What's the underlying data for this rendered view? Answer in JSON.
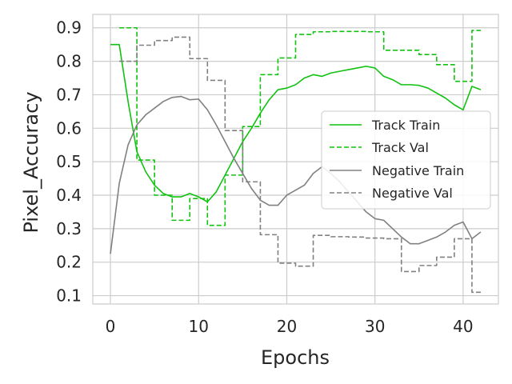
{
  "chart_data": {
    "type": "line",
    "xlabel": "Epochs",
    "ylabel": "Pixel_Accuracy",
    "xlim": [
      -2,
      44
    ],
    "ylim": [
      0.075,
      0.94
    ],
    "x_ticks": [
      0,
      10,
      20,
      30,
      40
    ],
    "y_ticks": [
      0.1,
      0.2,
      0.3,
      0.4,
      0.5,
      0.6,
      0.7,
      0.8,
      0.9
    ],
    "grid": true,
    "legend_position": "center-right",
    "series": [
      {
        "name": "Track Train",
        "color": "#11c211",
        "style": "solid",
        "x": [
          0,
          1,
          2,
          3,
          4,
          5,
          6,
          7,
          8,
          9,
          10,
          11,
          12,
          13,
          14,
          15,
          16,
          17,
          18,
          19,
          20,
          21,
          22,
          23,
          24,
          25,
          26,
          27,
          28,
          29,
          30,
          31,
          32,
          33,
          34,
          35,
          36,
          37,
          38,
          39,
          40,
          41,
          42
        ],
        "y": [
          0.85,
          0.85,
          0.68,
          0.53,
          0.47,
          0.43,
          0.405,
          0.395,
          0.395,
          0.405,
          0.395,
          0.38,
          0.41,
          0.46,
          0.51,
          0.56,
          0.6,
          0.645,
          0.685,
          0.715,
          0.72,
          0.73,
          0.75,
          0.76,
          0.755,
          0.765,
          0.77,
          0.775,
          0.78,
          0.785,
          0.78,
          0.755,
          0.745,
          0.73,
          0.73,
          0.728,
          0.72,
          0.705,
          0.69,
          0.67,
          0.655,
          0.725,
          0.715
        ]
      },
      {
        "name": "Track Val",
        "color": "#11c211",
        "style": "dashed",
        "x": [
          0,
          1,
          2,
          3,
          4,
          5,
          6,
          7,
          8,
          9,
          10,
          11,
          12,
          13,
          14,
          15,
          16,
          17,
          18,
          19,
          20,
          21,
          22,
          23,
          24,
          25,
          26,
          27,
          28,
          29,
          30,
          31,
          32,
          33,
          34,
          35,
          36,
          37,
          38,
          39,
          40,
          41,
          42
        ],
        "y": [
          null,
          0.9,
          0.9,
          0.505,
          0.505,
          0.4,
          0.4,
          0.325,
          0.325,
          0.39,
          0.39,
          0.31,
          0.31,
          0.46,
          0.46,
          0.605,
          0.605,
          0.76,
          0.76,
          0.81,
          0.81,
          0.88,
          0.88,
          0.888,
          0.888,
          0.889,
          0.889,
          0.889,
          0.889,
          0.888,
          0.888,
          0.833,
          0.833,
          0.833,
          0.833,
          0.82,
          0.82,
          0.79,
          0.79,
          0.74,
          0.74,
          0.892,
          0.892
        ]
      },
      {
        "name": "Negative Train",
        "color": "#808080",
        "style": "solid",
        "x": [
          0,
          1,
          2,
          3,
          4,
          5,
          6,
          7,
          8,
          9,
          10,
          11,
          12,
          13,
          14,
          15,
          16,
          17,
          18,
          19,
          20,
          21,
          22,
          23,
          24,
          25,
          26,
          27,
          28,
          29,
          30,
          31,
          32,
          33,
          34,
          35,
          36,
          37,
          38,
          39,
          40,
          41,
          42
        ],
        "y": [
          0.225,
          0.435,
          0.55,
          0.61,
          0.64,
          0.66,
          0.68,
          0.692,
          0.695,
          0.685,
          0.687,
          0.655,
          0.61,
          0.56,
          0.51,
          0.465,
          0.42,
          0.385,
          0.37,
          0.37,
          0.4,
          0.415,
          0.43,
          0.465,
          0.485,
          0.465,
          0.44,
          0.41,
          0.38,
          0.35,
          0.33,
          0.325,
          0.3,
          0.275,
          0.255,
          0.255,
          0.265,
          0.275,
          0.29,
          0.31,
          0.32,
          0.27,
          0.29
        ]
      },
      {
        "name": "Negative Val",
        "color": "#808080",
        "style": "dashed",
        "x": [
          0,
          1,
          2,
          3,
          4,
          5,
          6,
          7,
          8,
          9,
          10,
          11,
          12,
          13,
          14,
          15,
          16,
          17,
          18,
          19,
          20,
          21,
          22,
          23,
          24,
          25,
          26,
          27,
          28,
          29,
          30,
          31,
          32,
          33,
          34,
          35,
          36,
          37,
          38,
          39,
          40,
          41,
          42
        ],
        "y": [
          null,
          0.8,
          0.8,
          0.848,
          0.848,
          0.862,
          0.862,
          0.872,
          0.872,
          0.808,
          0.808,
          0.743,
          0.743,
          0.593,
          0.593,
          0.44,
          0.44,
          0.282,
          0.282,
          0.197,
          0.197,
          0.188,
          0.188,
          0.28,
          0.28,
          0.276,
          0.276,
          0.275,
          0.275,
          0.272,
          0.272,
          0.27,
          0.27,
          0.172,
          0.172,
          0.19,
          0.19,
          0.215,
          0.215,
          0.27,
          0.27,
          0.11,
          0.11
        ]
      }
    ]
  }
}
